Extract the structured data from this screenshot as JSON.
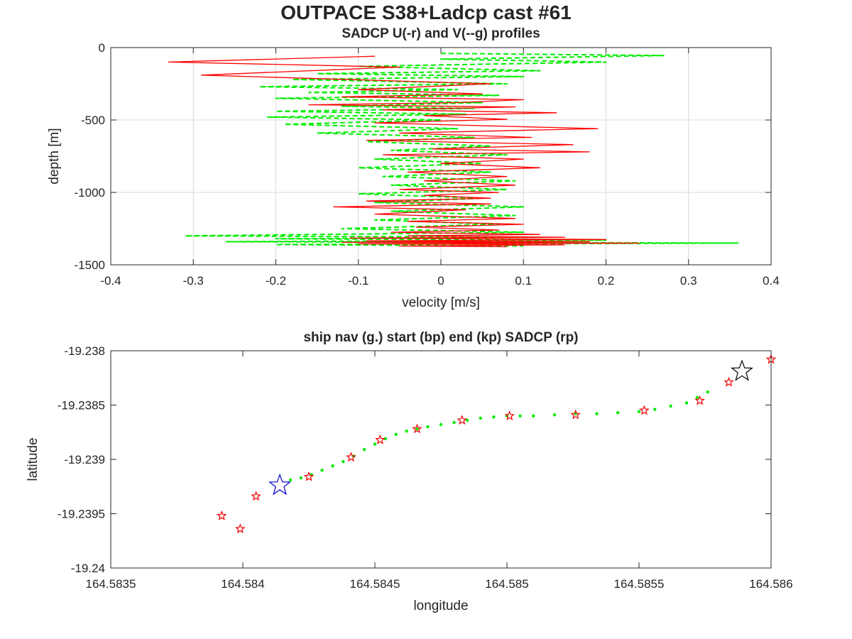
{
  "figure_title": "OUTPACE S38+Ladcp cast #61",
  "colors": {
    "u_profile": "#ff0000",
    "v_profile": "#00ee00",
    "nav": "#00ee00",
    "sadcp_star": "#ee0000",
    "start_star": "#0000cc",
    "end_star": "#000000",
    "grid": "#d9d9d9"
  },
  "chart_data": [
    {
      "type": "line",
      "title": "SADCP U(-r) and V(--g) profiles",
      "xlabel": "velocity [m/s]",
      "ylabel": "depth [m]",
      "xlim": [
        -0.4,
        0.4
      ],
      "ylim": [
        -1500,
        0
      ],
      "xticks": [
        "-0.4",
        "-0.3",
        "-0.2",
        "-0.1",
        "0",
        "0.1",
        "0.2",
        "0.3",
        "0.4"
      ],
      "yticks": [
        "0",
        "-500",
        "-1000",
        "-1500"
      ],
      "grid": true,
      "series": [
        {
          "style": "solid red",
          "x": [
            -0.08,
            -0.33,
            -0.05,
            -0.29,
            0.06,
            -0.1,
            0.05,
            -0.12,
            0.1,
            0.02,
            -0.16,
            0.09,
            -0.07,
            0.14,
            -0.02,
            0.08,
            -0.08,
            0.19,
            -0.05,
            0.11,
            -0.09,
            0.16,
            -0.01,
            0.18,
            -0.07,
            0.1,
            0.0,
            0.12,
            -0.04,
            0.08,
            -0.02,
            0.09,
            -0.05,
            0.07,
            -0.02,
            0.06,
            -0.09,
            0.06,
            -0.13,
            0.03,
            -0.08,
            0.09,
            -0.04,
            0.1,
            -0.03,
            0.07,
            -0.06,
            0.12,
            -0.04,
            0.15,
            -0.11,
            0.2,
            -0.09,
            0.18,
            -0.12,
            0.24,
            -0.1,
            0.15,
            -0.05,
            0.08
          ],
          "y": [
            -60,
            -100,
            -135,
            -190,
            -250,
            -290,
            -320,
            -340,
            -360,
            -380,
            -395,
            -410,
            -430,
            -450,
            -470,
            -495,
            -520,
            -560,
            -590,
            -620,
            -640,
            -670,
            -700,
            -720,
            -740,
            -770,
            -800,
            -830,
            -860,
            -890,
            -920,
            -950,
            -980,
            -1000,
            -1020,
            -1040,
            -1060,
            -1080,
            -1100,
            -1120,
            -1150,
            -1180,
            -1200,
            -1220,
            -1240,
            -1260,
            -1275,
            -1290,
            -1300,
            -1310,
            -1315,
            -1325,
            -1335,
            -1340,
            -1345,
            -1350,
            -1355,
            -1362,
            -1370,
            -1375
          ]
        },
        {
          "style": "dashed green",
          "x": [
            0.0,
            0.27,
            0.0,
            0.2,
            -0.1,
            0.12,
            -0.15,
            0.1,
            -0.18,
            0.08,
            -0.22,
            0.02,
            -0.16,
            0.07,
            -0.2,
            0.05,
            -0.12,
            0.04,
            -0.2,
            0.03,
            -0.21,
            0.0,
            -0.19,
            0.02,
            -0.15,
            0.04,
            -0.09,
            0.06,
            -0.06,
            0.08,
            -0.08,
            0.05,
            -0.1,
            0.06,
            -0.07,
            0.09,
            -0.06,
            0.08,
            -0.1,
            0.05,
            -0.08,
            0.1,
            -0.06,
            0.09,
            -0.08,
            0.07,
            -0.12,
            0.1,
            -0.31,
            0.12,
            -0.2,
            0.2,
            -0.26,
            0.36,
            -0.2,
            0.1
          ],
          "y": [
            -40,
            -55,
            -80,
            -100,
            -130,
            -160,
            -180,
            -200,
            -220,
            -250,
            -270,
            -290,
            -310,
            -330,
            -350,
            -380,
            -405,
            -420,
            -440,
            -460,
            -480,
            -500,
            -530,
            -560,
            -590,
            -620,
            -650,
            -680,
            -710,
            -740,
            -770,
            -800,
            -830,
            -860,
            -890,
            -920,
            -950,
            -980,
            -1010,
            -1040,
            -1070,
            -1100,
            -1130,
            -1160,
            -1190,
            -1220,
            -1250,
            -1275,
            -1300,
            -1310,
            -1320,
            -1330,
            -1340,
            -1350,
            -1360,
            -1370
          ]
        }
      ]
    },
    {
      "type": "scatter",
      "title": "ship nav (g.) start (bp) end (kp) SADCP (rp)",
      "xlabel": "longitude",
      "ylabel": "latitude",
      "xlim": [
        164.5835,
        164.586
      ],
      "ylim": [
        -19.24,
        -19.238
      ],
      "xticks": [
        "164.5835",
        "164.584",
        "164.5845",
        "164.585",
        "164.5855",
        "164.586"
      ],
      "yticks": [
        "-19.238",
        "-19.2385",
        "-19.239",
        "-19.2395",
        "-19.24"
      ],
      "grid": false,
      "nav_track": {
        "x": [
          164.58418,
          164.58422,
          164.58426,
          164.5843,
          164.58434,
          164.58438,
          164.58442,
          164.58446,
          164.5845,
          164.58454,
          164.58458,
          164.58462,
          164.58466,
          164.5847,
          164.58475,
          164.5848,
          164.58485,
          164.5849,
          164.58495,
          164.585,
          164.58505,
          164.5851,
          164.58518,
          164.58526,
          164.58534,
          164.58542,
          164.5855,
          164.58556,
          164.58562,
          164.58568,
          164.58572,
          164.58576
        ],
        "y": [
          -19.23919,
          -19.23917,
          -19.23914,
          -19.2391,
          -19.23906,
          -19.23902,
          -19.23897,
          -19.23891,
          -19.23886,
          -19.23881,
          -19.23877,
          -19.23874,
          -19.23872,
          -19.2387,
          -19.23868,
          -19.23866,
          -19.23864,
          -19.23862,
          -19.23861,
          -19.2386,
          -19.2386,
          -19.2386,
          -19.23859,
          -19.23858,
          -19.23858,
          -19.23857,
          -19.23856,
          -19.23854,
          -19.23851,
          -19.23848,
          -19.23843,
          -19.23838
        ]
      },
      "sadcp_points": {
        "x": [
          164.58392,
          164.58399,
          164.58405,
          164.58425,
          164.58441,
          164.58452,
          164.58466,
          164.58483,
          164.58501,
          164.58526,
          164.58552,
          164.58573,
          164.58584,
          164.586
        ],
        "y": [
          -19.23952,
          -19.23964,
          -19.23934,
          -19.23916,
          -19.23898,
          -19.23882,
          -19.23872,
          -19.23864,
          -19.2386,
          -19.23859,
          -19.23855,
          -19.23846,
          -19.23829,
          -19.23808
        ]
      },
      "start": {
        "x": 164.58414,
        "y": -19.23924
      },
      "end": {
        "x": 164.58589,
        "y": -19.23819
      }
    }
  ]
}
